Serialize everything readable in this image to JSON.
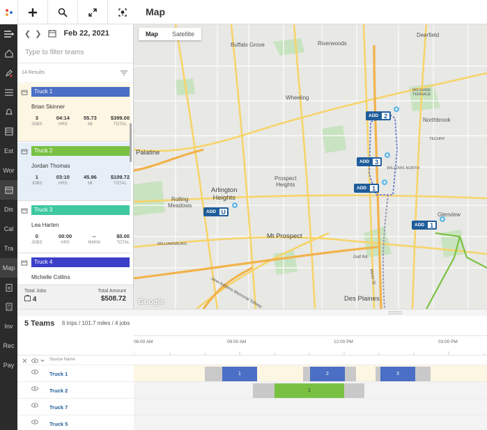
{
  "header": {
    "title": "Map",
    "buttons": [
      "add-icon",
      "search-icon",
      "expand-icon",
      "locate-icon"
    ]
  },
  "nav": {
    "items": [
      {
        "label": "Est"
      },
      {
        "label": "Wor"
      },
      {
        "label": "Dis"
      },
      {
        "label": "Cal"
      },
      {
        "label": "Tra"
      },
      {
        "label": "Map"
      },
      {
        "label": "Inv"
      },
      {
        "label": "Rec"
      },
      {
        "label": "Pay"
      }
    ]
  },
  "panel": {
    "date": "Feb 22, 2021",
    "filter_placeholder": "Type to filter teams",
    "results": "14 Results",
    "trucks": [
      {
        "name": "Truck 1",
        "color": "#4a6fc4",
        "driver": "Brian Skinner",
        "jobs": "3",
        "hrs": "04:14",
        "mi": "55.73",
        "total": "$399.00",
        "labels": [
          "JOBS",
          "HRS",
          "MI",
          "TOTAL"
        ]
      },
      {
        "name": "Truck 2",
        "color": "#7ac143",
        "driver": "Jordan Thomas",
        "jobs": "1",
        "hrs": "03:10",
        "mi": "45.96",
        "total": "$109.72",
        "labels": [
          "JOBS",
          "HRS",
          "MI",
          "TOTAL"
        ]
      },
      {
        "name": "Truck 3",
        "color": "#3fc8a0",
        "driver": "Lea Harten",
        "jobs": "0",
        "hrs": "00:00",
        "mi": "--",
        "total": "$0.00",
        "labels": [
          "JOBS",
          "HRS",
          "MI/KM",
          "TOTAL"
        ]
      },
      {
        "name": "Truck 4",
        "color": "#3c3fc9",
        "driver": "Michelle Collins"
      }
    ],
    "totals": {
      "jobs_label": "Total Jobs",
      "jobs": "4",
      "amount_label": "Total Amount",
      "amount": "$508.72"
    }
  },
  "map": {
    "toggle": [
      "Map",
      "Satellite"
    ],
    "places": [
      {
        "name": "Buffalo Grove"
      },
      {
        "name": "Riverwoods"
      },
      {
        "name": "Deerfield"
      },
      {
        "name": "Wheeling"
      },
      {
        "name": "Northbrook"
      },
      {
        "name": "Palatine"
      },
      {
        "name": "Prospect\nHeights"
      },
      {
        "name": "Arlington\nHeights"
      },
      {
        "name": "Rolling\nMeadows"
      },
      {
        "name": "Glenview"
      },
      {
        "name": "Mt Prospect"
      },
      {
        "name": "Des Plaines"
      },
      {
        "name": "WILSHIRE\nTERRACE"
      },
      {
        "name": "WILLOWS NORTH"
      },
      {
        "name": "TECHNY"
      },
      {
        "name": "WILLIAMSBURG"
      },
      {
        "name": "Golf Rd"
      },
      {
        "name": "Miner St"
      },
      {
        "name": "Jane Addams Memorial Tollway"
      }
    ],
    "markers": [
      {
        "label": "ADD",
        "num": "2"
      },
      {
        "label": "ADD",
        "num": "3"
      },
      {
        "label": "ADD",
        "num": "1"
      },
      {
        "label": "ADD",
        "num": "U"
      },
      {
        "label": "ADD",
        "num": "1"
      }
    ],
    "attribution": "Google"
  },
  "gantt": {
    "title": "5 Teams",
    "summary": "6 trips / 101.7 miles / 4 jobs",
    "ticks": [
      "06:00 AM",
      "09:00 AM",
      "12:00 PM",
      "03:00 PM"
    ],
    "column_header": "Source Name",
    "rows": [
      {
        "name": "Truck 1",
        "trips": [
          "1",
          "2",
          "3"
        ]
      },
      {
        "name": "Truck 2",
        "trips": [
          "1"
        ]
      },
      {
        "name": "Truck 7",
        "trips": []
      },
      {
        "name": "Truck 5",
        "trips": []
      }
    ]
  }
}
